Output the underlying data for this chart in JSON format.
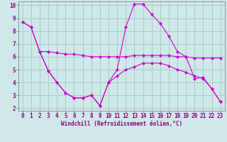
{
  "background_color": "#cfe8e8",
  "grid_color": "#aacccc",
  "line_color": "#cc00cc",
  "xlim": [
    -0.5,
    23.5
  ],
  "ylim": [
    1.8,
    10.3
  ],
  "xticks": [
    0,
    1,
    2,
    3,
    4,
    5,
    6,
    7,
    8,
    9,
    10,
    11,
    12,
    13,
    14,
    15,
    16,
    17,
    18,
    19,
    20,
    21,
    22,
    23
  ],
  "yticks": [
    2,
    3,
    4,
    5,
    6,
    7,
    8,
    9,
    10
  ],
  "xlabel": "Windchill (Refroidissement éolien,°C)",
  "series": [
    {
      "x": [
        0,
        1,
        2,
        3,
        4,
        5,
        6,
        7,
        8,
        9,
        10,
        11,
        12,
        13,
        14,
        15,
        16,
        17,
        18,
        19,
        20,
        21,
        22,
        23
      ],
      "y": [
        8.7,
        8.3,
        6.4,
        4.9,
        4.0,
        3.2,
        2.8,
        2.8,
        3.0,
        2.2,
        4.0,
        5.0,
        8.3,
        10.1,
        10.1,
        9.3,
        8.6,
        7.6,
        6.4,
        6.0,
        4.3,
        4.4,
        3.5,
        2.5
      ]
    },
    {
      "x": [
        0,
        1,
        2,
        3,
        4,
        5,
        6,
        7,
        8,
        9,
        10,
        11,
        12,
        13,
        14,
        15,
        16,
        17,
        18,
        19,
        20,
        21,
        22,
        23
      ],
      "y": [
        8.7,
        8.3,
        6.4,
        6.4,
        6.3,
        6.2,
        6.2,
        6.1,
        6.0,
        6.0,
        6.0,
        6.0,
        6.0,
        6.1,
        6.1,
        6.1,
        6.1,
        6.1,
        6.0,
        6.0,
        5.9,
        5.9,
        5.9,
        5.9
      ]
    },
    {
      "x": [
        2,
        3,
        4,
        5,
        6,
        7,
        8,
        9,
        10,
        11,
        12,
        13,
        14,
        15,
        16,
        17,
        18,
        19,
        20,
        21,
        22,
        23
      ],
      "y": [
        6.4,
        4.9,
        4.0,
        3.2,
        2.8,
        2.8,
        3.0,
        2.2,
        4.0,
        4.5,
        5.0,
        5.2,
        5.5,
        5.5,
        5.5,
        5.3,
        5.0,
        4.8,
        4.5,
        4.3,
        3.5,
        2.5
      ]
    }
  ],
  "tick_fontsize": 5.5,
  "xlabel_fontsize": 5.5
}
